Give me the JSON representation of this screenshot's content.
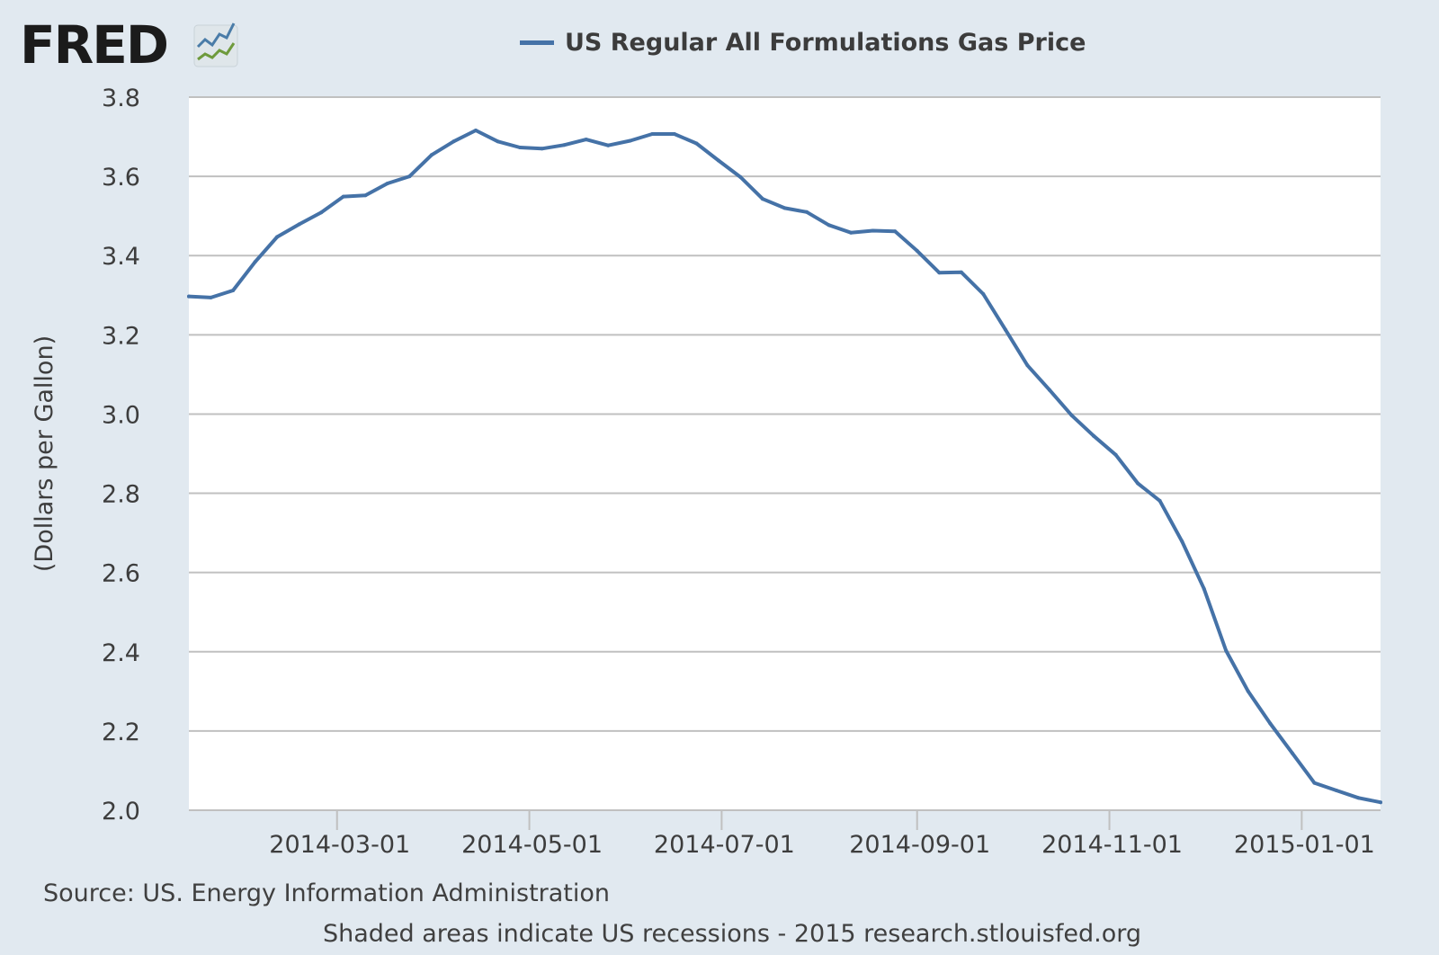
{
  "header": {
    "logo_text": "FRED",
    "legend_label": "US Regular All Formulations Gas Price"
  },
  "footer": {
    "source": "Source: US. Energy Information Administration",
    "note": "Shaded areas indicate US recessions - 2015 research.stlouisfed.org"
  },
  "colors": {
    "series": "#4572a7",
    "background": "#e1e9f0",
    "plot_background": "#ffffff",
    "gridline": "#c0c0c0"
  },
  "chart_data": {
    "type": "line",
    "title": "",
    "xlabel": "",
    "ylabel": "(Dollars per Gallon)",
    "ylim": [
      2.0,
      3.8
    ],
    "xlim": [
      "2014-01-13",
      "2015-01-26"
    ],
    "yticks": [
      "2.0",
      "2.2",
      "2.4",
      "2.6",
      "2.8",
      "3.0",
      "3.2",
      "3.4",
      "3.6",
      "3.8"
    ],
    "xticks": [
      "2014-03-01",
      "2014-05-01",
      "2014-07-01",
      "2014-09-01",
      "2014-11-01",
      "2015-01-01"
    ],
    "grid": true,
    "legend": "top-center",
    "series": [
      {
        "name": "US Regular All Formulations Gas Price",
        "x": [
          "2014-01-13",
          "2014-01-20",
          "2014-01-27",
          "2014-02-03",
          "2014-02-10",
          "2014-02-17",
          "2014-02-24",
          "2014-03-03",
          "2014-03-10",
          "2014-03-17",
          "2014-03-24",
          "2014-03-31",
          "2014-04-07",
          "2014-04-14",
          "2014-04-21",
          "2014-04-28",
          "2014-05-05",
          "2014-05-12",
          "2014-05-19",
          "2014-05-26",
          "2014-06-02",
          "2014-06-09",
          "2014-06-16",
          "2014-06-23",
          "2014-06-30",
          "2014-07-07",
          "2014-07-14",
          "2014-07-21",
          "2014-07-28",
          "2014-08-04",
          "2014-08-11",
          "2014-08-18",
          "2014-08-25",
          "2014-09-01",
          "2014-09-08",
          "2014-09-15",
          "2014-09-22",
          "2014-09-29",
          "2014-10-06",
          "2014-10-13",
          "2014-10-20",
          "2014-10-27",
          "2014-11-03",
          "2014-11-10",
          "2014-11-17",
          "2014-11-24",
          "2014-12-01",
          "2014-12-08",
          "2014-12-15",
          "2014-12-22",
          "2014-12-29",
          "2015-01-05",
          "2015-01-12",
          "2015-01-19",
          "2015-01-26"
        ],
        "values": [
          3.297,
          3.294,
          3.312,
          3.384,
          3.447,
          3.479,
          3.509,
          3.549,
          3.552,
          3.582,
          3.6,
          3.654,
          3.688,
          3.716,
          3.688,
          3.673,
          3.67,
          3.679,
          3.693,
          3.678,
          3.69,
          3.707,
          3.707,
          3.683,
          3.64,
          3.598,
          3.543,
          3.52,
          3.51,
          3.477,
          3.458,
          3.463,
          3.461,
          3.412,
          3.357,
          3.358,
          3.303,
          3.213,
          3.123,
          3.061,
          2.997,
          2.945,
          2.897,
          2.825,
          2.781,
          2.679,
          2.559,
          2.403,
          2.3,
          2.219,
          2.144,
          2.069,
          2.05,
          2.031,
          2.02
        ]
      }
    ]
  }
}
